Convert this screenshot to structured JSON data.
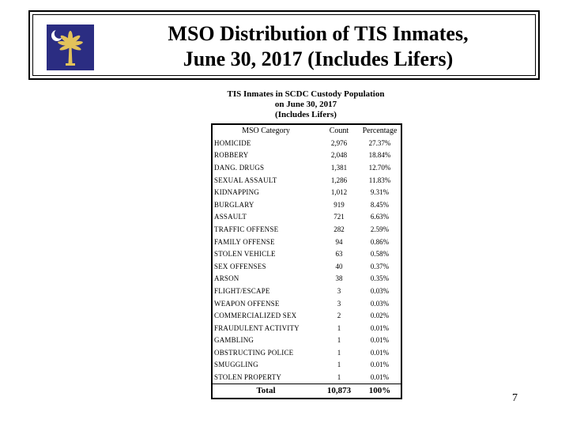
{
  "header": {
    "title_line1": "MSO Distribution of TIS Inmates,",
    "title_line2": "June 30, 2017 (Includes Lifers)",
    "flag_color": "#2b2d82",
    "flag_icon": "palmetto-crescent-flag-icon"
  },
  "table": {
    "caption_line1": "TIS Inmates in SCDC Custody Population",
    "caption_line2": "on June 30, 2017",
    "caption_line3": "(Includes Lifers)",
    "headers": {
      "category": "MSO Category",
      "count": "Count",
      "percentage": "Percentage"
    },
    "rows": [
      {
        "category": "HOMICIDE",
        "count": "2,976",
        "percentage": "27.37%"
      },
      {
        "category": "ROBBERY",
        "count": "2,048",
        "percentage": "18.84%"
      },
      {
        "category": "DANG. DRUGS",
        "count": "1,381",
        "percentage": "12.70%"
      },
      {
        "category": "SEXUAL ASSAULT",
        "count": "1,286",
        "percentage": "11.83%"
      },
      {
        "category": "KIDNAPPING",
        "count": "1,012",
        "percentage": "9.31%"
      },
      {
        "category": "BURGLARY",
        "count": "919",
        "percentage": "8.45%"
      },
      {
        "category": "ASSAULT",
        "count": "721",
        "percentage": "6.63%"
      },
      {
        "category": "TRAFFIC OFFENSE",
        "count": "282",
        "percentage": "2.59%"
      },
      {
        "category": "FAMILY OFFENSE",
        "count": "94",
        "percentage": "0.86%"
      },
      {
        "category": "STOLEN VEHICLE",
        "count": "63",
        "percentage": "0.58%"
      },
      {
        "category": "SEX OFFENSES",
        "count": "40",
        "percentage": "0.37%"
      },
      {
        "category": "ARSON",
        "count": "38",
        "percentage": "0.35%"
      },
      {
        "category": "FLIGHT/ESCAPE",
        "count": "3",
        "percentage": "0.03%"
      },
      {
        "category": "WEAPON OFFENSE",
        "count": "3",
        "percentage": "0.03%"
      },
      {
        "category": "COMMERCIALIZED SEX",
        "count": "2",
        "percentage": "0.02%"
      },
      {
        "category": "FRAUDULENT ACTIVITY",
        "count": "1",
        "percentage": "0.01%"
      },
      {
        "category": "GAMBLING",
        "count": "1",
        "percentage": "0.01%"
      },
      {
        "category": "OBSTRUCTING POLICE",
        "count": "1",
        "percentage": "0.01%"
      },
      {
        "category": "SMUGGLING",
        "count": "1",
        "percentage": "0.01%"
      },
      {
        "category": "STOLEN PROPERTY",
        "count": "1",
        "percentage": "0.01%"
      }
    ],
    "total": {
      "label": "Total",
      "count": "10,873",
      "percentage": "100%"
    }
  },
  "page_number": "7"
}
